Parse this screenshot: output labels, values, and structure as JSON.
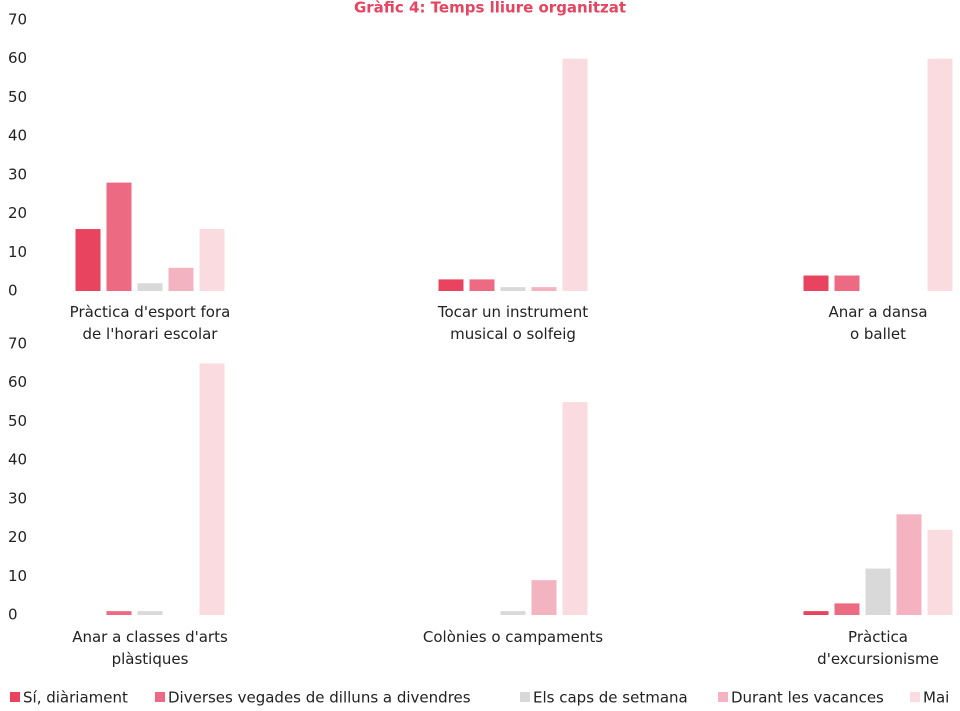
{
  "chart_data": {
    "type": "bar",
    "title": "Gràfic 4: Temps lliure organitzat",
    "categories": [
      "Pràctica d'esport fora\nde l'horari escolar",
      "Tocar un instrument\nmusical o solfeig",
      "Anar a dansa\no ballet",
      "Anar a classes d'arts\nplàstiques",
      "Colònies o campaments",
      "Pràctica\nd'excursionisme"
    ],
    "series": [
      {
        "name": "Sí, diàriament",
        "color": "#e8435f",
        "values": [
          16,
          3,
          4,
          0,
          0,
          1
        ]
      },
      {
        "name": "Diverses vegades de dilluns a divendres",
        "color": "#ec6b83",
        "values": [
          28,
          3,
          4,
          1,
          0,
          3
        ]
      },
      {
        "name": "Els caps de setmana",
        "color": "#d9d9d9",
        "values": [
          2,
          1,
          0,
          1,
          1,
          12
        ]
      },
      {
        "name": "Durant les vacances",
        "color": "#f4b3c0",
        "values": [
          6,
          1,
          0,
          0,
          9,
          26
        ]
      },
      {
        "name": "Mai",
        "color": "#fadbe0",
        "values": [
          16,
          60,
          60,
          65,
          55,
          22
        ]
      }
    ],
    "ylim": [
      0,
      70
    ],
    "yticks": [
      0,
      10,
      20,
      30,
      40,
      50,
      60,
      70
    ],
    "legend": "bottom"
  }
}
